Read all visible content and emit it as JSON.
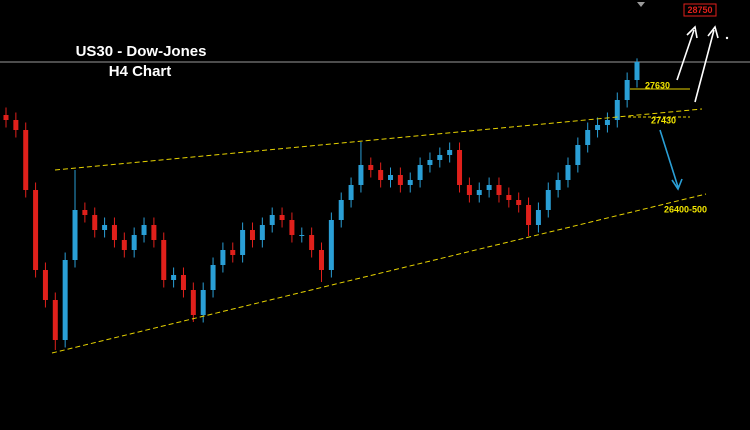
{
  "chart_data": {
    "type": "candlestick",
    "title": "US30 - Dow-Jones",
    "subtitle": "H4 Chart",
    "annotations": [
      "28750",
      "27630",
      "27430",
      "26400-500"
    ],
    "up_color": "#2a9fd6",
    "down_color": "#e0201b",
    "ylim": [
      25560,
      28140
    ],
    "open": [
      27450,
      27420,
      27360,
      27000,
      26520,
      26340,
      26100,
      26580,
      26880,
      26850,
      26760,
      26790,
      26700,
      26640,
      26730,
      26790,
      26700,
      26460,
      26490,
      26400,
      26250,
      26400,
      26550,
      26640,
      26610,
      26760,
      26700,
      26790,
      26850,
      26820,
      26730,
      26730,
      26640,
      26520,
      26820,
      26940,
      27030,
      27150,
      27120,
      27060,
      27090,
      27030,
      27060,
      27150,
      27180,
      27210,
      27240,
      27030,
      26970,
      27000,
      27030,
      26970,
      26940,
      26910,
      26790,
      26880,
      27000,
      27060,
      27150,
      27270,
      27360,
      27390,
      27420,
      27540,
      27660
    ],
    "high": [
      27495,
      27465,
      27405,
      27045,
      26565,
      26385,
      26625,
      27120,
      26925,
      26895,
      26835,
      26835,
      26745,
      26775,
      26835,
      26835,
      26745,
      26535,
      26535,
      26445,
      26445,
      26595,
      26685,
      26685,
      26805,
      26805,
      26835,
      26895,
      26895,
      26865,
      26775,
      26775,
      26685,
      26865,
      26985,
      27075,
      27288,
      27195,
      27165,
      27135,
      27135,
      27105,
      27195,
      27225,
      27255,
      27285,
      27285,
      27075,
      27045,
      27075,
      27075,
      27015,
      26985,
      26955,
      26925,
      27045,
      27105,
      27195,
      27315,
      27405,
      27435,
      27465,
      27585,
      27705,
      27790
    ],
    "low": [
      27375,
      27315,
      26955,
      26475,
      26295,
      26040,
      26055,
      26535,
      26805,
      26715,
      26715,
      26655,
      26595,
      26595,
      26685,
      26655,
      26415,
      26415,
      26355,
      26208,
      26205,
      26355,
      26505,
      26565,
      26565,
      26655,
      26655,
      26745,
      26775,
      26685,
      26685,
      26595,
      26448,
      26475,
      26775,
      26895,
      26985,
      27075,
      27015,
      27015,
      26985,
      26985,
      27015,
      27105,
      27135,
      27165,
      26985,
      26925,
      26925,
      26955,
      26925,
      26895,
      26865,
      26724,
      26745,
      26835,
      26955,
      27015,
      27105,
      27225,
      27315,
      27345,
      27375,
      27495,
      27615
    ],
    "close": [
      27420,
      27360,
      27000,
      26520,
      26340,
      26100,
      26580,
      26880,
      26850,
      26760,
      26790,
      26700,
      26640,
      26730,
      26790,
      26700,
      26460,
      26490,
      26400,
      26250,
      26400,
      26550,
      26640,
      26610,
      26760,
      26700,
      26790,
      26850,
      26820,
      26730,
      26730,
      26640,
      26520,
      26820,
      26940,
      27030,
      27150,
      27120,
      27060,
      27090,
      27030,
      27060,
      27150,
      27180,
      27210,
      27240,
      27030,
      26970,
      27000,
      27030,
      26970,
      26940,
      26910,
      26790,
      26880,
      27000,
      27060,
      27150,
      27270,
      27360,
      27390,
      27420,
      27540,
      27660,
      27768
    ]
  }
}
